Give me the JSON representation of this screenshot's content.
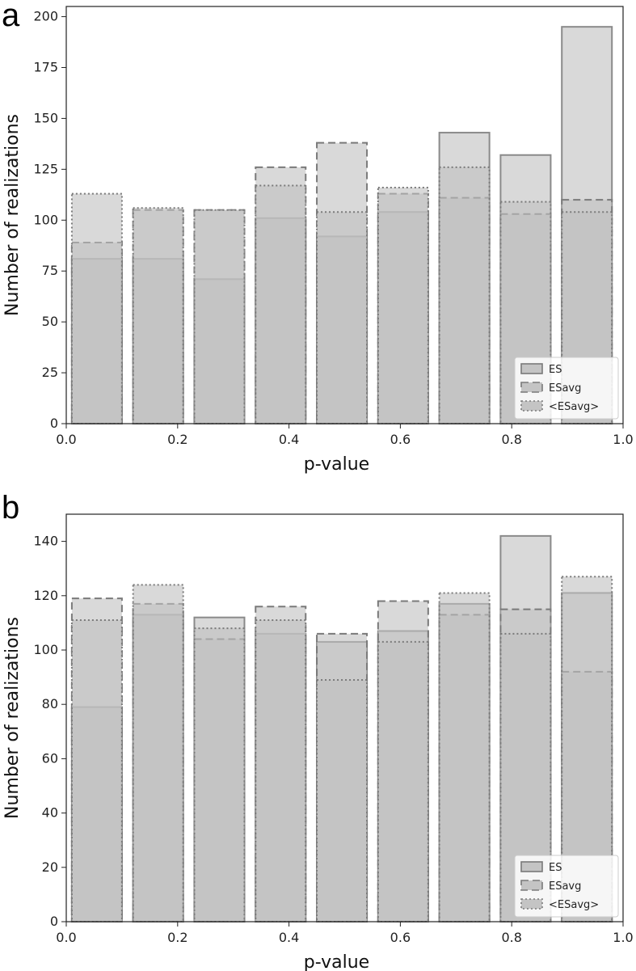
{
  "chart_data": [
    {
      "panel": "a",
      "type": "bar",
      "xlabel": "p-value",
      "ylabel": "Number of realizations",
      "xlim": [
        0.0,
        1.0
      ],
      "ylim": [
        0,
        205
      ],
      "xticks": [
        "0.0",
        "0.2",
        "0.4",
        "0.6",
        "0.8",
        "1.0"
      ],
      "yticks": [
        "0",
        "25",
        "50",
        "75",
        "100",
        "125",
        "150",
        "175",
        "200"
      ],
      "bin_edges": [
        0.01,
        0.1,
        0.12,
        0.21,
        0.23,
        0.32,
        0.34,
        0.43,
        0.45,
        0.54,
        0.56,
        0.65,
        0.67,
        0.76,
        0.78,
        0.87,
        0.89,
        0.98
      ],
      "bin_centers": [
        0.055,
        0.165,
        0.275,
        0.385,
        0.495,
        0.605,
        0.715,
        0.825,
        0.935
      ],
      "series": [
        {
          "name": "ES",
          "line_style": "solid",
          "values": [
            81,
            81,
            71,
            101,
            92,
            104,
            143,
            132,
            195
          ]
        },
        {
          "name": "ESavg",
          "line_style": "dashed",
          "values": [
            89,
            105,
            105,
            126,
            138,
            113,
            111,
            103,
            110
          ]
        },
        {
          "name": "<ESavg>",
          "line_style": "dotted",
          "values": [
            113,
            106,
            105,
            117,
            104,
            116,
            126,
            109,
            104
          ]
        }
      ],
      "legend_position": "lower-right"
    },
    {
      "panel": "b",
      "type": "bar",
      "xlabel": "p-value",
      "ylabel": "Number of realizations",
      "xlim": [
        0.0,
        1.0
      ],
      "ylim": [
        0,
        150
      ],
      "xticks": [
        "0.0",
        "0.2",
        "0.4",
        "0.6",
        "0.8",
        "1.0"
      ],
      "yticks": [
        "0",
        "20",
        "40",
        "60",
        "80",
        "100",
        "120",
        "140"
      ],
      "bin_edges": [
        0.01,
        0.1,
        0.12,
        0.21,
        0.23,
        0.32,
        0.34,
        0.43,
        0.45,
        0.54,
        0.56,
        0.65,
        0.67,
        0.76,
        0.78,
        0.87,
        0.89,
        0.98
      ],
      "bin_centers": [
        0.055,
        0.165,
        0.275,
        0.385,
        0.495,
        0.605,
        0.715,
        0.825,
        0.935
      ],
      "series": [
        {
          "name": "ES",
          "line_style": "solid",
          "values": [
            79,
            113,
            112,
            106,
            103,
            107,
            117,
            142,
            121
          ]
        },
        {
          "name": "ESavg",
          "line_style": "dashed",
          "values": [
            119,
            117,
            104,
            116,
            106,
            118,
            113,
            115,
            92
          ]
        },
        {
          "name": "<ESavg>",
          "line_style": "dotted",
          "values": [
            111,
            124,
            108,
            111,
            89,
            103,
            121,
            106,
            127
          ]
        }
      ],
      "legend_position": "lower-right"
    }
  ],
  "colors": {
    "bar_fill": "#bfbfbf",
    "bar_opacity": 0.6,
    "edge": "#8a8a8a",
    "edge_dark": "#7a7a7a"
  }
}
